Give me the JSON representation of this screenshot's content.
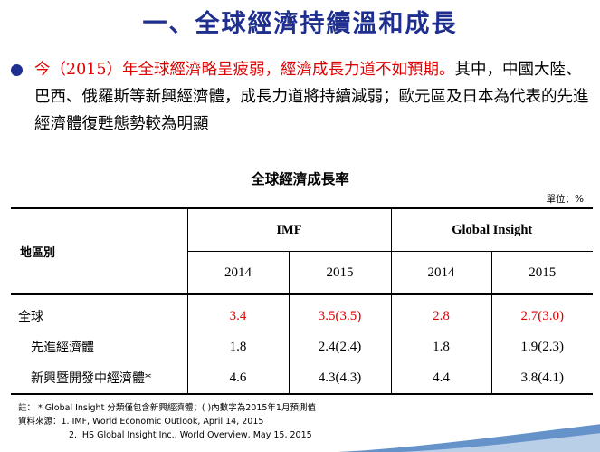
{
  "slide": {
    "title": "一、全球經濟持續溫和成長",
    "bullet": {
      "red_text": "今（2015）年全球經濟略呈疲弱，經濟成長力道不如預期。",
      "black_text": "其中，中國大陸、巴西、俄羅斯等新興經濟體，成長力道將持續減弱；歐元區及日本為代表的先進經濟體復甦態勢較為明顯"
    }
  },
  "table": {
    "title": "全球經濟成長率",
    "unit": "單位：%",
    "region_header": "地區別",
    "org_headers": [
      "IMF",
      "Global Insight"
    ],
    "year_headers": [
      "2014",
      "2015",
      "2014",
      "2015"
    ],
    "rows": [
      {
        "region": "全球",
        "values": [
          "3.4",
          "3.5(3.5)",
          "2.8",
          "2.7(3.0)"
        ]
      },
      {
        "region": "先進經濟體",
        "values": [
          "1.8",
          "2.4(2.4)",
          "1.8",
          "1.9(2.3)"
        ]
      },
      {
        "region": "新興暨開發中經濟體*",
        "values": [
          "4.6",
          "4.3(4.3)",
          "4.4",
          "3.8(4.1)"
        ]
      }
    ]
  },
  "footnotes": {
    "note": "註： * Global Insight 分類僅包含新興經濟體；( )內數字為2015年1月預測值",
    "source_1": "資料來源：1. IMF, World Economic Outlook, April 14, 2015",
    "source_2": "2. IHS Global Insight Inc., World Overview, May 15, 2015"
  },
  "colors": {
    "title": "#1f2f8f",
    "highlight": "#e00000",
    "decoration": "#4a7fc0"
  }
}
